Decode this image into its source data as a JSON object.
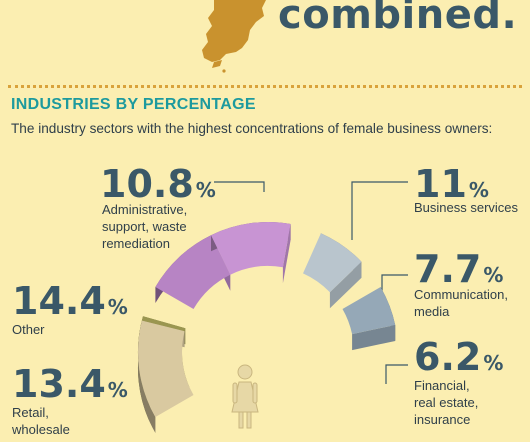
{
  "header": {
    "hero_word": "combined."
  },
  "section": {
    "title": "INDUSTRIES BY PERCENTAGE",
    "intro": "The industry sectors with the highest concentrations of female business owners:"
  },
  "icons": {
    "map": "map-silhouette-icon",
    "figure": "female-figure-icon"
  },
  "colors": {
    "background": "#fbeeb1",
    "accent_teal": "#1d9a9e",
    "divider": "#d9a23b",
    "text_dark": "#3a5868",
    "map": "#c9922e"
  },
  "chart_data": {
    "type": "pie",
    "title": "INDUSTRIES BY PERCENTAGE",
    "unit": "%",
    "slices": [
      {
        "value": 10.8,
        "value_text": "10.8",
        "label_lines": [
          "Administrative,",
          "support, waste",
          "remediation"
        ],
        "color": "#b784c4"
      },
      {
        "value": 11,
        "value_text": "11",
        "label_lines": [
          "Business services"
        ],
        "color": "#c894d3"
      },
      {
        "value": 7.7,
        "value_text": "7.7",
        "label_lines": [
          "Communication,",
          "media"
        ],
        "color": "#b9c5cd"
      },
      {
        "value": 6.2,
        "value_text": "6.2",
        "label_lines": [
          "Financial,",
          "real estate,",
          "insurance"
        ],
        "color": "#95a8b7"
      },
      {
        "value": 14.4,
        "value_text": "14.4",
        "label_lines": [
          "Other"
        ],
        "color": "#9a9650"
      },
      {
        "value": 13.4,
        "value_text": "13.4",
        "label_lines": [
          "Retail,",
          "wholesale"
        ],
        "color": "#d9c9a0"
      }
    ]
  }
}
